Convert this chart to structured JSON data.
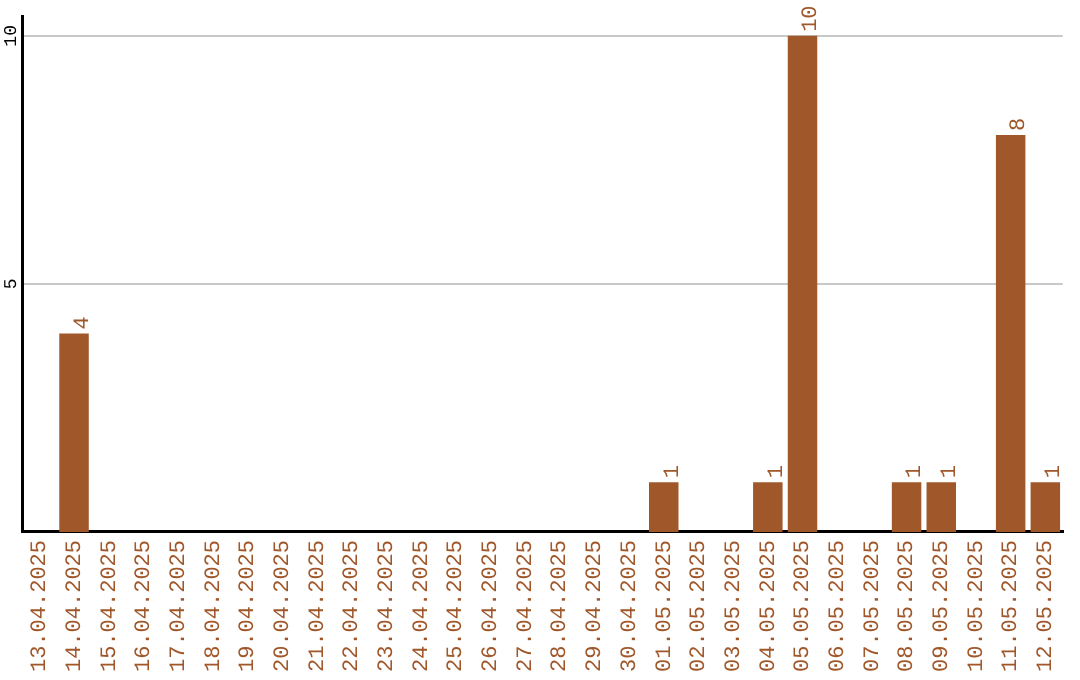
{
  "chart_data": {
    "type": "bar",
    "categories": [
      "13.04.2025",
      "14.04.2025",
      "15.04.2025",
      "16.04.2025",
      "17.04.2025",
      "18.04.2025",
      "19.04.2025",
      "20.04.2025",
      "21.04.2025",
      "22.04.2025",
      "23.04.2025",
      "24.04.2025",
      "25.04.2025",
      "26.04.2025",
      "27.04.2025",
      "28.04.2025",
      "29.04.2025",
      "30.04.2025",
      "01.05.2025",
      "02.05.2025",
      "03.05.2025",
      "04.05.2025",
      "05.05.2025",
      "06.05.2025",
      "07.05.2025",
      "08.05.2025",
      "09.05.2025",
      "10.05.2025",
      "11.05.2025",
      "12.05.2025"
    ],
    "values": [
      0,
      4,
      0,
      0,
      0,
      0,
      0,
      0,
      0,
      0,
      0,
      0,
      0,
      0,
      0,
      0,
      0,
      0,
      1,
      0,
      0,
      1,
      10,
      0,
      0,
      1,
      1,
      0,
      8,
      1
    ],
    "value_labels": [
      null,
      "4",
      null,
      null,
      null,
      null,
      null,
      null,
      null,
      null,
      null,
      null,
      null,
      null,
      null,
      null,
      null,
      null,
      "1",
      null,
      null,
      "1",
      "10",
      null,
      null,
      "1",
      "1",
      null,
      "8",
      "1"
    ],
    "color": "#a0572a",
    "ylim": [
      0,
      10.4
    ],
    "yticks": [
      5,
      10
    ],
    "grid": "y",
    "legend": false
  }
}
